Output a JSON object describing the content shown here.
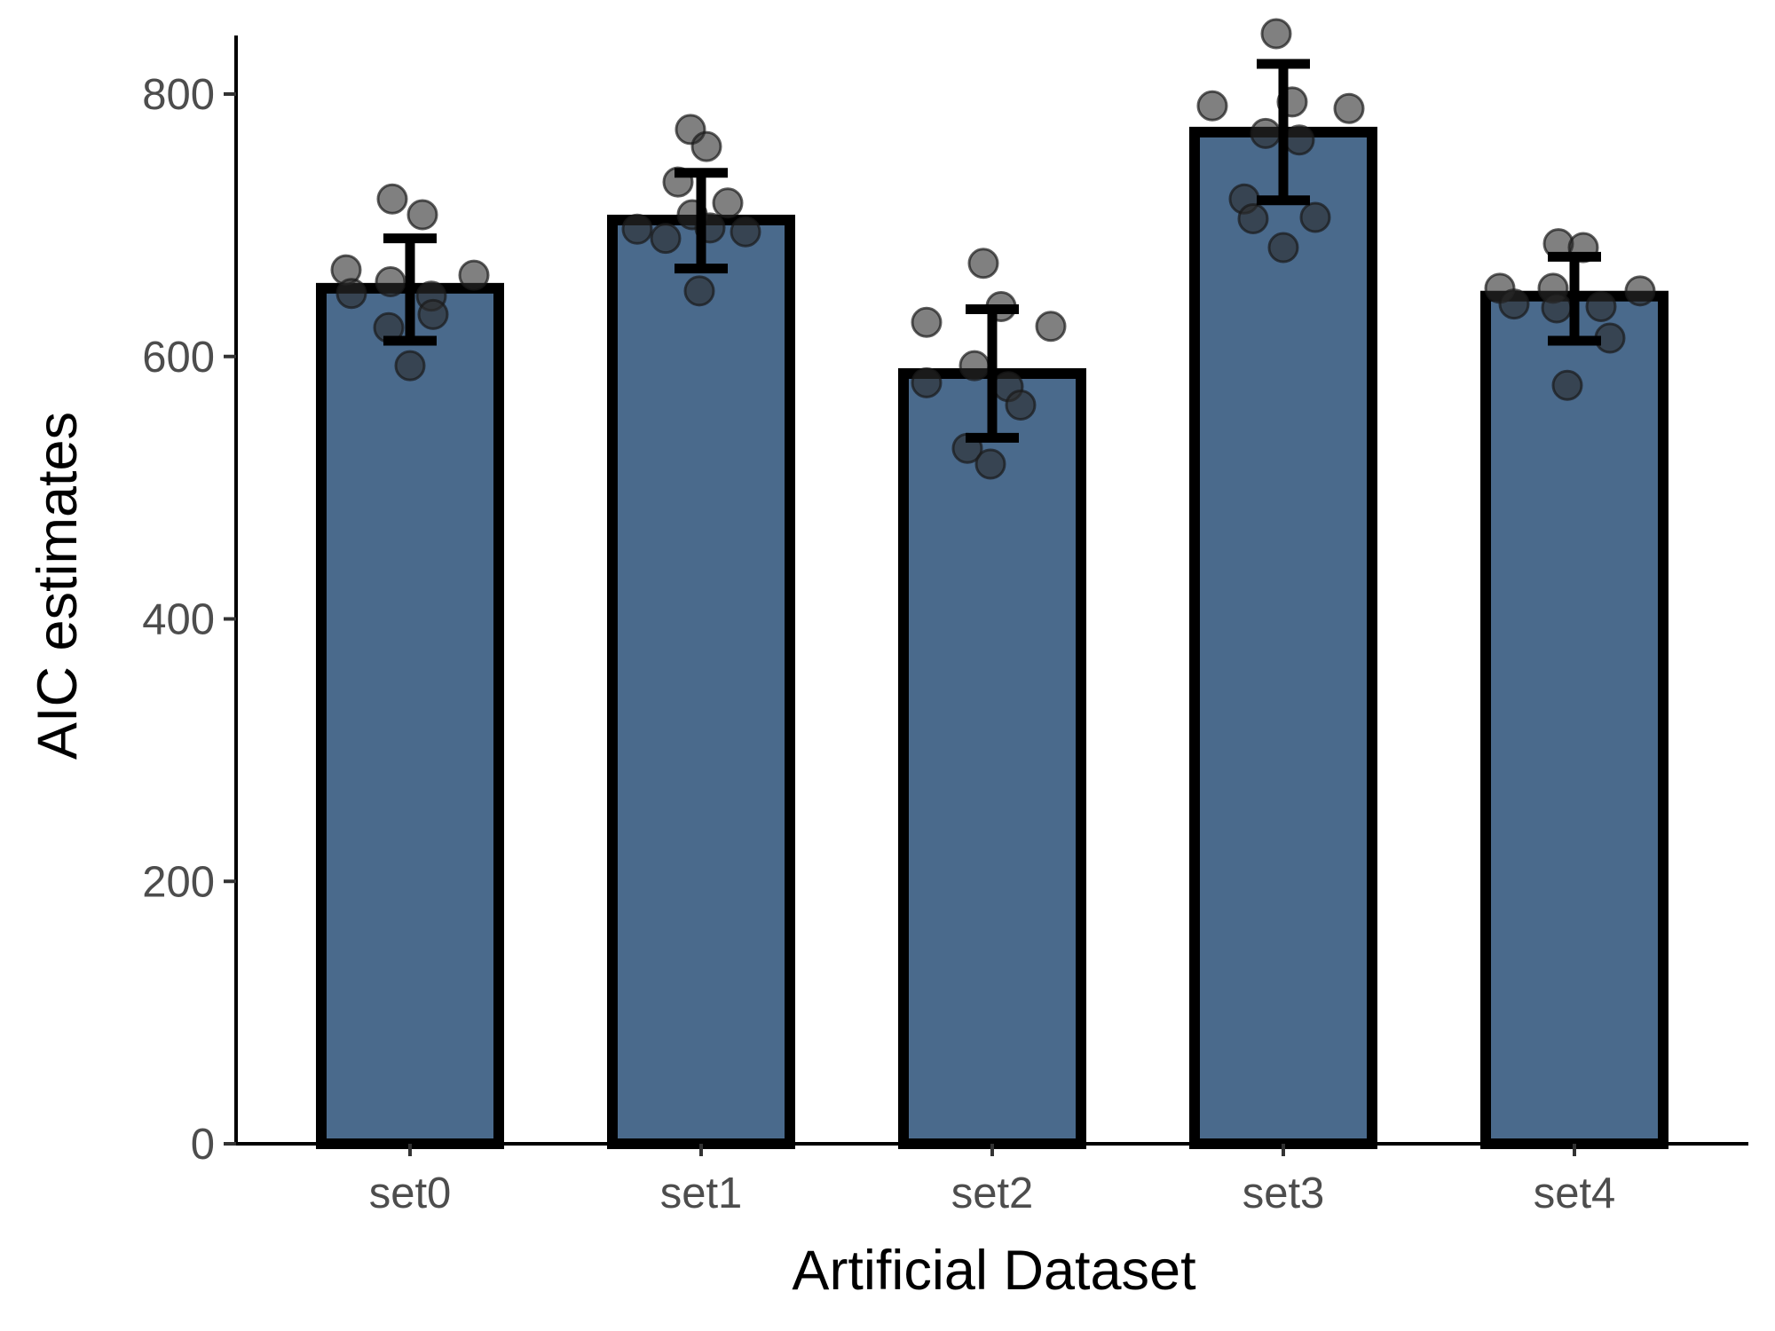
{
  "chart_data": {
    "type": "bar",
    "xlabel": "Artificial Dataset",
    "ylabel": "AIC estimates",
    "ylim": [
      0,
      845
    ],
    "yticks": [
      0,
      200,
      400,
      600,
      800
    ],
    "categories": [
      "set0",
      "set1",
      "set2",
      "set3",
      "set4"
    ],
    "values": [
      652,
      704,
      587,
      771,
      646
    ],
    "error_bars": [
      {
        "low": 612,
        "high": 690
      },
      {
        "low": 667,
        "high": 740
      },
      {
        "low": 538,
        "high": 636
      },
      {
        "low": 719,
        "high": 823
      },
      {
        "low": 612,
        "high": 676
      }
    ],
    "points": [
      [
        720,
        708,
        666,
        657,
        646,
        648,
        662,
        622,
        632,
        593
      ],
      [
        773,
        760,
        733,
        717,
        708,
        697,
        690,
        698,
        695,
        650
      ],
      [
        671,
        638,
        626,
        623,
        593,
        580,
        577,
        563,
        530,
        518
      ],
      [
        846,
        794,
        791,
        789,
        770,
        765,
        720,
        705,
        706,
        683
      ],
      [
        686,
        683,
        652,
        650,
        652,
        640,
        638,
        637,
        614,
        578
      ]
    ],
    "grid": false,
    "legend": "none",
    "colors": {
      "bar_fill": "#4a6a8c",
      "bar_outline": "#000000",
      "point_fill": "#2b2b2b",
      "error_bar": "#000000"
    }
  }
}
